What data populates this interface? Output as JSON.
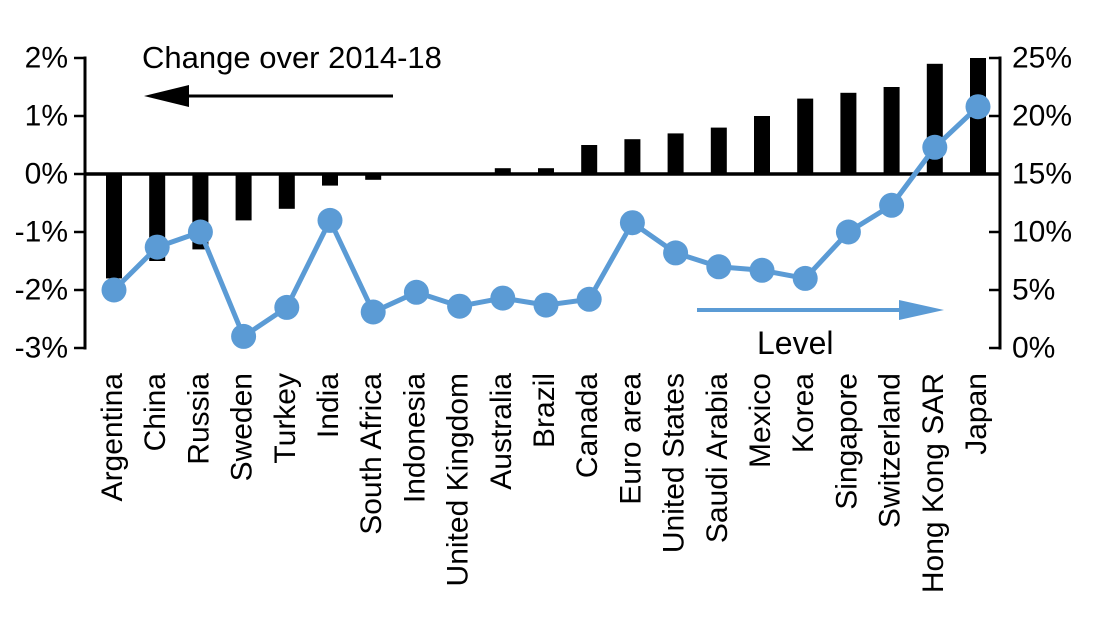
{
  "chart_data": {
    "type": "bar",
    "subtype": "dual-axis combo: bars (left axis) + line with markers (right axis)",
    "title": "Change over 2014-18",
    "categories": [
      "Argentina",
      "China",
      "Russia",
      "Sweden",
      "Turkey",
      "India",
      "South Africa",
      "Indonesia",
      "United Kingdom",
      "Australia",
      "Brazil",
      "Canada",
      "Euro area",
      "United States",
      "Saudi Arabia",
      "Mexico",
      "Korea",
      "Singapore",
      "Switzerland",
      "Hong Kong SAR",
      "Japan"
    ],
    "series": [
      {
        "name": "Change over 2014-18",
        "type": "bar",
        "axis": "left",
        "values": [
          -1.8,
          -1.5,
          -1.3,
          -0.8,
          -0.6,
          -0.2,
          -0.1,
          0.0,
          0.0,
          0.1,
          0.1,
          0.5,
          0.6,
          0.7,
          0.8,
          1.0,
          1.3,
          1.4,
          1.5,
          1.9,
          2.0
        ]
      },
      {
        "name": "Level",
        "type": "line",
        "axis": "right",
        "values": [
          5.0,
          8.7,
          10.0,
          1.0,
          3.5,
          11.0,
          3.1,
          4.8,
          3.6,
          4.3,
          3.7,
          4.2,
          10.8,
          8.2,
          7.0,
          6.7,
          6.0,
          10.0,
          12.3,
          17.3,
          20.8
        ]
      }
    ],
    "left_axis": {
      "min": -3,
      "max": 2,
      "tick_values": [
        2,
        1,
        0,
        -1,
        -2,
        -3
      ],
      "tick_labels": [
        "2%",
        "1%",
        "0%",
        "-1%",
        "-2%",
        "-3%"
      ]
    },
    "right_axis": {
      "min": 0,
      "max": 25,
      "tick_values": [
        25,
        20,
        15,
        10,
        5,
        0
      ],
      "tick_labels": [
        "25%",
        "20%",
        "15%",
        "10%",
        "5%",
        "0%"
      ]
    },
    "annotations": {
      "bar_series_label": "Change over 2014-18",
      "bar_arrow_direction": "left",
      "line_series_label": "Level",
      "line_arrow_direction": "right"
    },
    "colors": {
      "bar": "#000000",
      "line": "#5B9BD5",
      "axis": "#000000",
      "background": "#FFFFFF"
    },
    "grid": "off",
    "legend_position": "annotations inside plot"
  }
}
